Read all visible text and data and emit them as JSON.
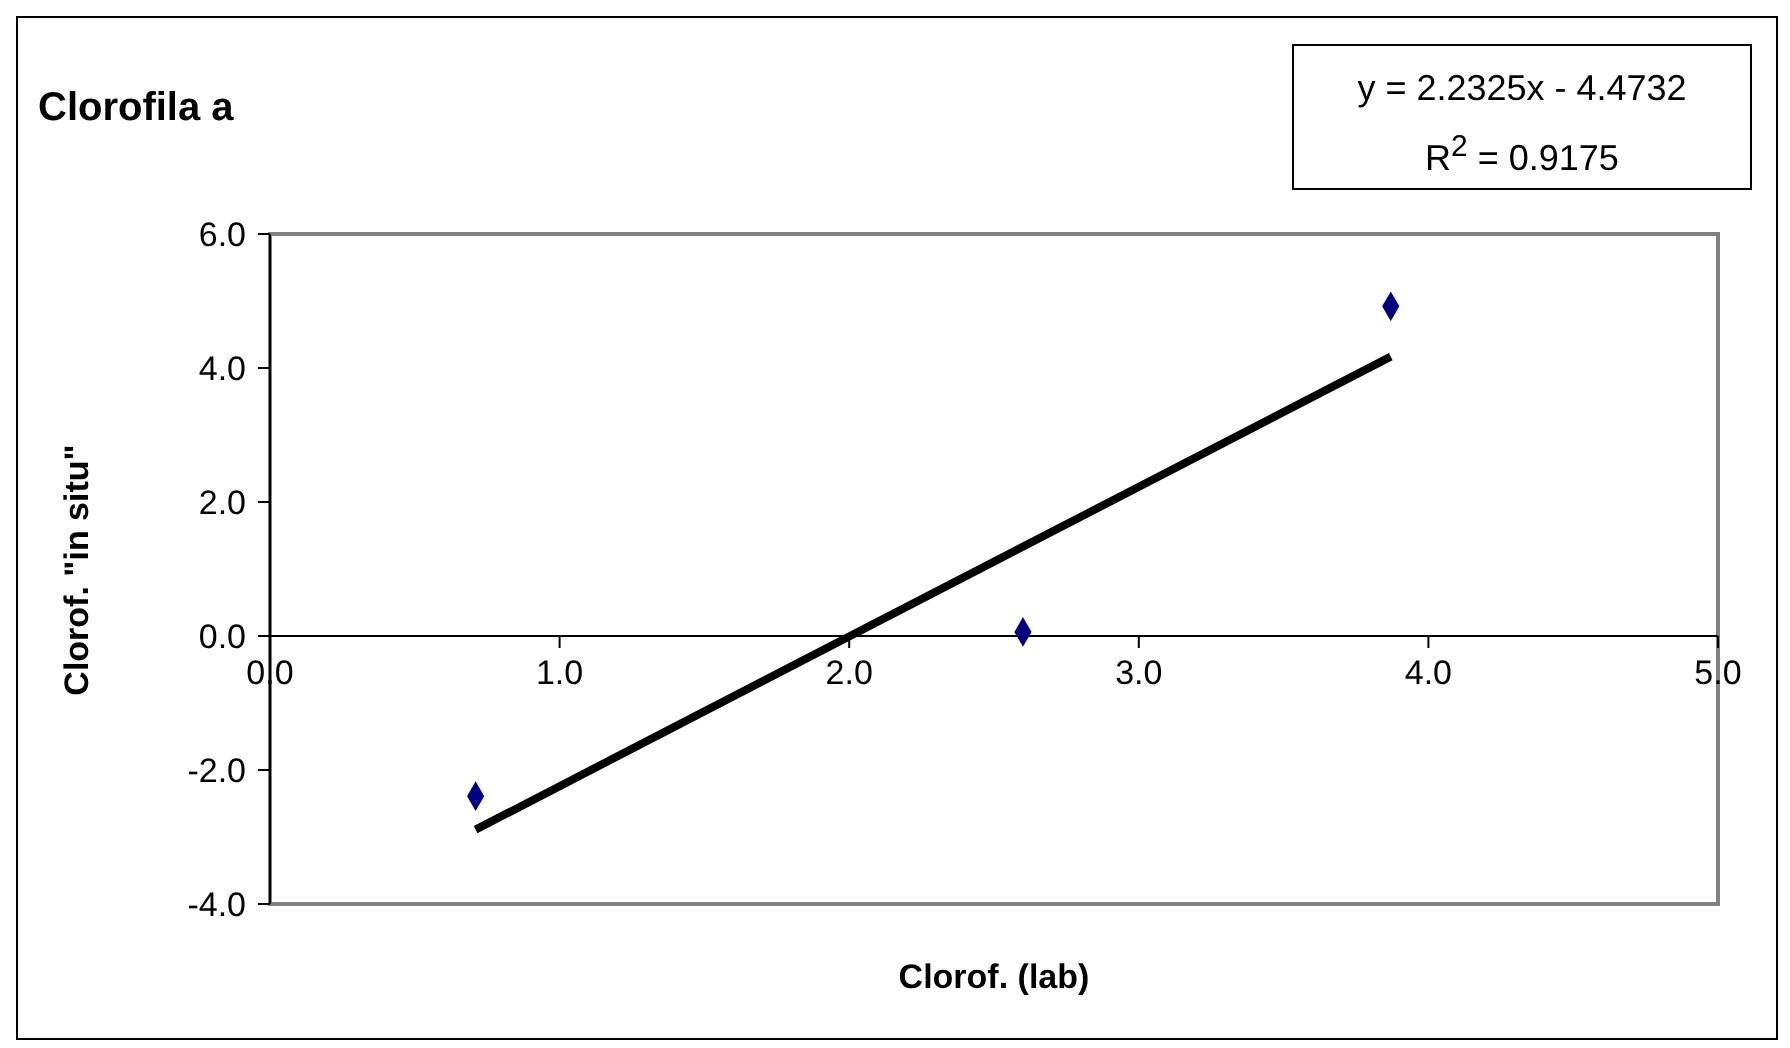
{
  "chart_data": {
    "type": "scatter",
    "title": "Clorofila a",
    "xlabel": "Clorof. (lab)",
    "ylabel": "Clorof. \"in situ\"",
    "annotations": [
      "y = 2.2325x - 4.4732",
      "R$^{2}$ = 0.9175"
    ],
    "xlim": [
      0,
      5
    ],
    "xticks": [
      {
        "value": 0,
        "label": "0.0"
      },
      {
        "value": 1,
        "label": "1.0"
      },
      {
        "value": 2,
        "label": "2.0"
      },
      {
        "value": 3,
        "label": "3.0"
      },
      {
        "value": 4,
        "label": "4.0"
      },
      {
        "value": 5,
        "label": "5.0"
      }
    ],
    "ylim": [
      -4,
      6
    ],
    "yticks": [
      {
        "value": -4,
        "label": "-4.0"
      },
      {
        "value": -2,
        "label": "-2.0"
      },
      {
        "value": 0,
        "label": "0.0"
      },
      {
        "value": 2,
        "label": "2.0"
      },
      {
        "value": 4,
        "label": "4.0"
      },
      {
        "value": 6,
        "label": "6.0"
      }
    ],
    "grid": false,
    "series": [
      {
        "type": "scatter",
        "color": "#000080",
        "marker": "diamond",
        "x": [
          0.71,
          2.6,
          3.87
        ],
        "values": [
          -2.39,
          0.06,
          4.92
        ]
      },
      {
        "type": "line",
        "color": "#000000",
        "marker": "none",
        "line_style": "solid",
        "x": [
          0.71,
          3.87
        ],
        "values": [
          -2.89,
          4.17
        ]
      }
    ]
  }
}
